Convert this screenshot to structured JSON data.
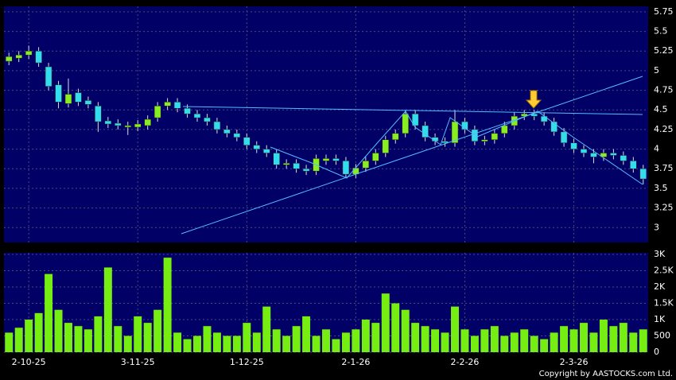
{
  "chart_data": {
    "type": "candlestick",
    "source": "Copyright by AASTOCKS.com Ltd.",
    "categories": [
      null,
      null,
      "2-10-25",
      null,
      null,
      null,
      null,
      null,
      null,
      null,
      null,
      null,
      null,
      "3-11-25",
      null,
      null,
      null,
      null,
      null,
      null,
      null,
      null,
      null,
      null,
      "1-12-25",
      null,
      null,
      null,
      null,
      null,
      null,
      null,
      null,
      null,
      null,
      "2-1-26",
      null,
      null,
      null,
      null,
      null,
      null,
      null,
      null,
      null,
      null,
      "2-2-26",
      null,
      null,
      null,
      null,
      null,
      null,
      null,
      null,
      null,
      null,
      "2-3-26",
      null,
      null,
      null,
      null,
      null,
      null,
      null
    ],
    "open": [
      5.12,
      5.16,
      5.2,
      5.25,
      5.05,
      4.82,
      4.58,
      4.72,
      4.62,
      4.55,
      4.36,
      4.33,
      4.28,
      4.28,
      4.3,
      4.4,
      4.55,
      4.6,
      4.52,
      4.45,
      4.4,
      4.35,
      4.25,
      4.2,
      4.15,
      4.05,
      4.0,
      3.95,
      3.8,
      3.82,
      3.75,
      3.72,
      3.85,
      3.88,
      3.85,
      3.68,
      3.76,
      3.85,
      3.95,
      4.12,
      4.2,
      4.45,
      4.3,
      4.15,
      4.1,
      4.08,
      4.35,
      4.25,
      4.1,
      4.12,
      4.2,
      4.3,
      4.42,
      4.45,
      4.42,
      4.35,
      4.22,
      4.08,
      4.0,
      3.95,
      3.9,
      3.95,
      3.92,
      3.85,
      3.75
    ],
    "high": [
      5.23,
      5.25,
      5.32,
      5.3,
      5.1,
      4.87,
      4.9,
      4.77,
      4.67,
      4.6,
      4.41,
      4.38,
      4.35,
      4.37,
      4.43,
      4.6,
      4.65,
      4.65,
      4.57,
      4.5,
      4.45,
      4.4,
      4.3,
      4.25,
      4.2,
      4.1,
      4.05,
      4.0,
      3.87,
      3.87,
      3.8,
      3.93,
      3.93,
      3.93,
      3.9,
      3.81,
      3.9,
      4.0,
      4.17,
      4.25,
      4.5,
      4.5,
      4.35,
      4.2,
      4.15,
      4.5,
      4.4,
      4.3,
      4.17,
      4.25,
      4.35,
      4.47,
      4.5,
      4.5,
      4.47,
      4.4,
      4.27,
      4.13,
      4.05,
      4.0,
      4.0,
      4.0,
      3.97,
      3.9,
      3.8
    ],
    "low": [
      5.07,
      5.11,
      5.15,
      5.05,
      4.75,
      4.52,
      4.53,
      4.55,
      4.52,
      4.22,
      4.27,
      4.25,
      4.18,
      4.23,
      4.25,
      4.35,
      4.5,
      4.47,
      4.4,
      4.35,
      4.3,
      4.2,
      4.15,
      4.1,
      4.0,
      3.95,
      3.9,
      3.75,
      3.75,
      3.7,
      3.67,
      3.67,
      3.8,
      3.8,
      3.63,
      3.63,
      3.71,
      3.8,
      3.9,
      4.07,
      4.15,
      4.25,
      4.1,
      4.05,
      4.03,
      4.03,
      4.2,
      4.05,
      4.05,
      4.07,
      4.15,
      4.25,
      4.37,
      4.37,
      4.3,
      4.17,
      4.03,
      3.95,
      3.9,
      3.82,
      3.85,
      3.87,
      3.8,
      3.7,
      3.55
    ],
    "close": [
      5.18,
      5.2,
      5.25,
      5.1,
      4.8,
      4.6,
      4.7,
      4.6,
      4.57,
      4.35,
      4.32,
      4.3,
      4.3,
      4.32,
      4.38,
      4.55,
      4.6,
      4.52,
      4.45,
      4.4,
      4.35,
      4.25,
      4.2,
      4.15,
      4.05,
      4.0,
      3.95,
      3.8,
      3.82,
      3.75,
      3.72,
      3.88,
      3.88,
      3.85,
      3.68,
      3.76,
      3.85,
      3.95,
      4.12,
      4.2,
      4.45,
      4.3,
      4.15,
      4.1,
      4.08,
      4.35,
      4.25,
      4.1,
      4.12,
      4.2,
      4.3,
      4.42,
      4.45,
      4.42,
      4.35,
      4.22,
      4.08,
      4.0,
      3.95,
      3.9,
      3.95,
      3.92,
      3.85,
      3.75,
      3.62
    ],
    "volume": [
      600,
      750,
      1000,
      1200,
      2400,
      1300,
      900,
      800,
      700,
      1100,
      2600,
      800,
      500,
      1100,
      900,
      1300,
      2900,
      600,
      400,
      500,
      800,
      600,
      500,
      500,
      900,
      600,
      1400,
      700,
      500,
      800,
      1100,
      500,
      700,
      400,
      600,
      700,
      1000,
      900,
      1800,
      1500,
      1300,
      900,
      800,
      700,
      600,
      1400,
      700,
      500,
      700,
      800,
      500,
      600,
      700,
      500,
      400,
      600,
      800,
      700,
      900,
      600,
      1000,
      800,
      900,
      600,
      700
    ],
    "up_color": "#88ee22",
    "down_color": "#33ddee",
    "volume_color": "#77ee11",
    "ylim": [
      2.81,
      5.82
    ],
    "yticks": [
      3,
      3.25,
      3.5,
      3.75,
      4,
      4.25,
      4.5,
      4.75,
      5,
      5.25,
      5.5,
      5.75
    ],
    "volume_ylim": [
      0,
      3050
    ],
    "volume_yticks": [
      0,
      500,
      {
        "value": 1000,
        "label": "1K"
      },
      {
        "value": 1500,
        "label": "1.5K"
      },
      {
        "value": 2000,
        "label": "2K"
      },
      {
        "value": 2500,
        "label": "2.5K"
      },
      {
        "value": 3000,
        "label": "3K"
      }
    ],
    "grid": true
  }
}
